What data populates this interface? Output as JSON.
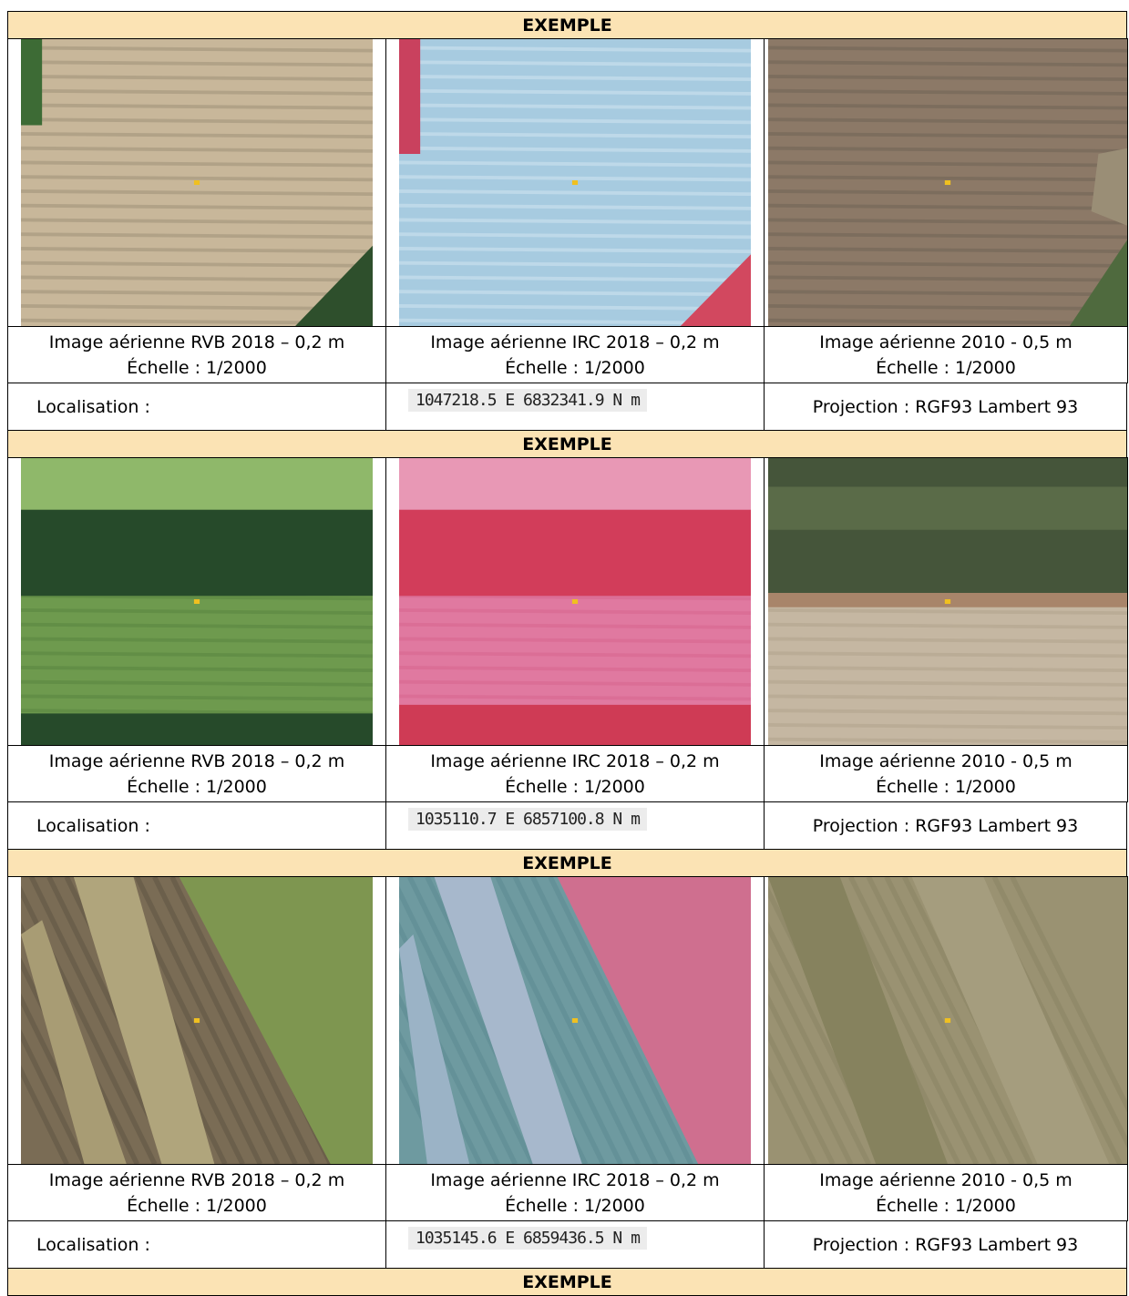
{
  "blocks": [
    {
      "header": "EXEMPLE",
      "images": [
        {
          "caption": "Image aérienne RVB 2018 – 0,2 m",
          "scale": "Échelle : 1/2000"
        },
        {
          "caption": "Image aérienne IRC 2018 – 0,2 m",
          "scale": "Échelle : 1/2000"
        },
        {
          "caption": "Image aérienne 2010 - 0,5 m",
          "scale": "Échelle : 1/2000"
        }
      ],
      "localisation": "Localisation :",
      "coordinates": "1047218.5 E  6832341.9 N m",
      "projection": "Projection : RGF93 Lambert 93"
    },
    {
      "header": "EXEMPLE",
      "images": [
        {
          "caption": "Image aérienne RVB 2018 – 0,2 m",
          "scale": "Échelle : 1/2000"
        },
        {
          "caption": "Image aérienne IRC 2018 – 0,2 m",
          "scale": "Échelle : 1/2000"
        },
        {
          "caption": "Image aérienne 2010 - 0,5 m",
          "scale": "Échelle : 1/2000"
        }
      ],
      "localisation": "Localisation :",
      "coordinates": "1035110.7 E  6857100.8 N m",
      "projection": "Projection : RGF93 Lambert 93"
    },
    {
      "header": "EXEMPLE",
      "images": [
        {
          "caption": "Image aérienne RVB 2018 – 0,2 m",
          "scale": "Échelle : 1/2000"
        },
        {
          "caption": "Image aérienne IRC 2018 – 0,2 m",
          "scale": "Échelle : 1/2000"
        },
        {
          "caption": "Image aérienne 2010 - 0,5 m",
          "scale": "Échelle : 1/2000"
        }
      ],
      "localisation": "Localisation :",
      "coordinates": "1035145.6 E  6859436.5 N m",
      "projection": "Projection : RGF93 Lambert 93"
    }
  ],
  "footer_header": "EXEMPLE"
}
